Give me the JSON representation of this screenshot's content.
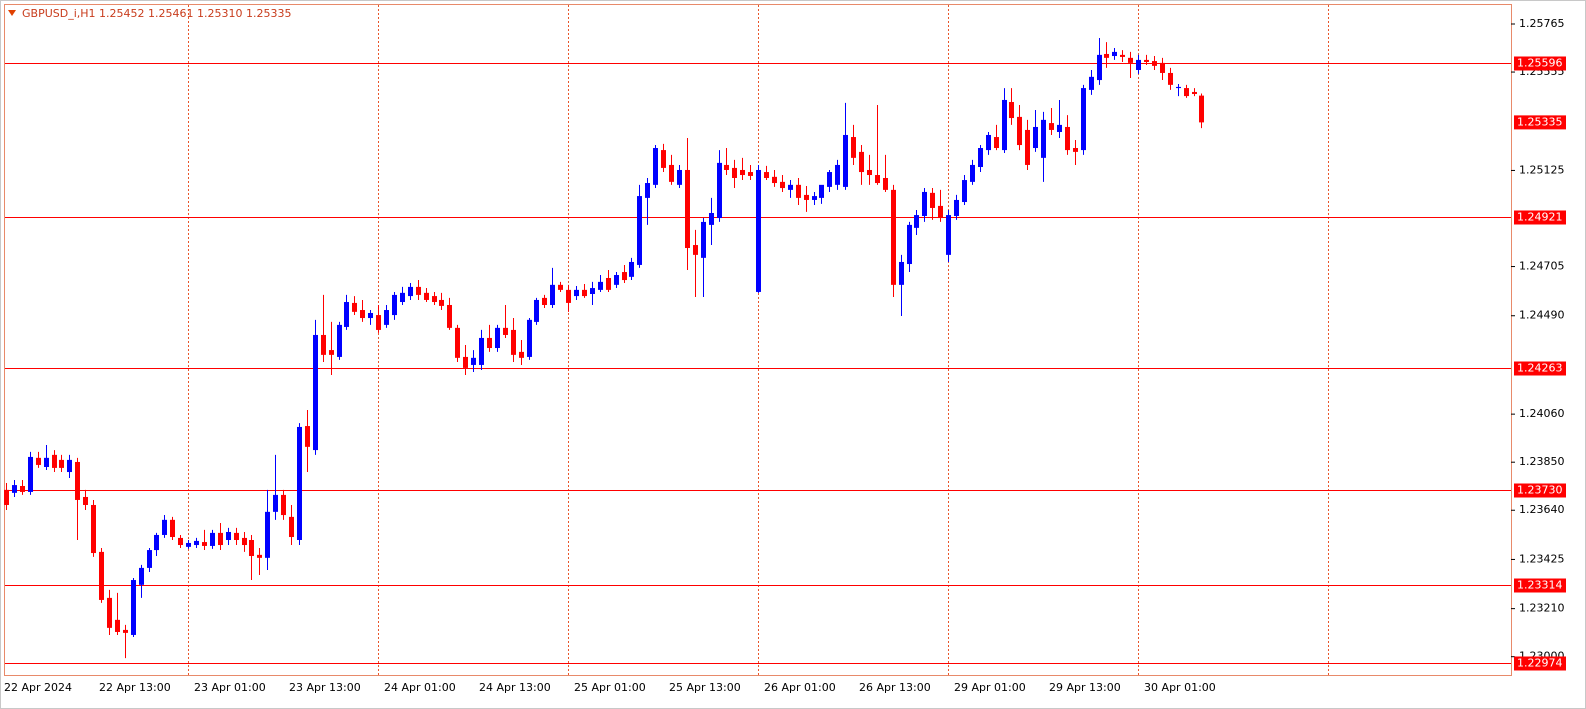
{
  "chart_data": {
    "type": "candlestick",
    "title": "GBPUSD_i,H1  1.25452 1.25461 1.25310 1.25335",
    "up_color": "#0000ff",
    "down_color": "#ff0000",
    "line_color": "#ff0000",
    "ylim": [
      1.2292,
      1.25848
    ],
    "yticks": [
      1.25765,
      1.25555,
      1.25125,
      1.24705,
      {
        "value": 1.2449,
        "label": "1.24490"
      },
      {
        "value": 1.2406,
        "label": "1.24060"
      },
      {
        "value": 1.2385,
        "label": "1.23850"
      },
      {
        "value": 1.2364,
        "label": "1.23640"
      },
      1.23425,
      {
        "value": 1.2321,
        "label": "1.23210"
      },
      {
        "value": 1.23,
        "label": "1.23000"
      }
    ],
    "hlines": [
      1.25596,
      1.24921,
      1.24263,
      {
        "value": 1.2373,
        "label": "1.23730"
      },
      1.23314,
      1.22974
    ],
    "categories": [
      "22 Apr 2024",
      null,
      null,
      null,
      null,
      null,
      null,
      null,
      null,
      null,
      null,
      null,
      "22 Apr 13:00",
      null,
      null,
      null,
      null,
      null,
      null,
      null,
      null,
      null,
      null,
      null,
      "23 Apr 01:00",
      null,
      null,
      null,
      null,
      null,
      null,
      null,
      null,
      null,
      null,
      null,
      "23 Apr 13:00",
      null,
      null,
      null,
      null,
      null,
      null,
      null,
      null,
      null,
      null,
      null,
      "24 Apr 01:00",
      null,
      null,
      null,
      null,
      null,
      null,
      null,
      null,
      null,
      null,
      null,
      "24 Apr 13:00",
      null,
      null,
      null,
      null,
      null,
      null,
      null,
      null,
      null,
      null,
      null,
      "25 Apr 01:00",
      null,
      null,
      null,
      null,
      null,
      null,
      null,
      null,
      null,
      null,
      null,
      "25 Apr 13:00",
      null,
      null,
      null,
      null,
      null,
      null,
      null,
      null,
      null,
      null,
      null,
      "26 Apr 01:00",
      null,
      null,
      null,
      null,
      null,
      null,
      null,
      null,
      null,
      null,
      null,
      "26 Apr 13:00",
      null,
      null,
      null,
      null,
      null,
      null,
      null,
      null,
      null,
      null,
      null,
      "29 Apr 01:00",
      null,
      null,
      null,
      null,
      null,
      null,
      null,
      null,
      null,
      null,
      null,
      "29 Apr 13:00",
      null,
      null,
      null,
      null,
      null,
      null,
      null,
      null,
      null,
      null,
      null,
      "30 Apr 01:00",
      null,
      null,
      null,
      null,
      null,
      null,
      null
    ],
    "open": [
      1.23729,
      1.23716,
      1.23746,
      1.2372,
      1.23869,
      1.23829,
      1.23882,
      1.2386,
      1.23807,
      1.23851,
      1.23698,
      1.23663,
      1.23458,
      1.23257,
      1.23161,
      1.23117,
      1.23095,
      1.23314,
      1.23388,
      1.23466,
      1.23532,
      1.23598,
      1.23519,
      1.2348,
      1.23488,
      1.23501,
      1.23484,
      1.23541,
      1.2351,
      1.23541,
      1.23519,
      1.2351,
      1.23445,
      1.23432,
      1.23633,
      1.23707,
      1.23611,
      1.2351,
      1.24008,
      1.23903,
      1.24406,
      1.2434,
      1.2431,
      1.24441,
      1.24546,
      1.24515,
      1.2448,
      1.24493,
      1.2445,
      1.24493,
      1.2455,
      1.24576,
      1.24616,
      1.2459,
      1.24576,
      1.24559,
      1.24537,
      1.24437,
      1.2431,
      1.24275,
      1.24275,
      1.24393,
      1.24349,
      1.24437,
      1.24428,
      1.24332,
      1.2431,
      1.24463,
      1.24568,
      1.24537,
      1.24625,
      1.24603,
      1.24576,
      1.24603,
      1.24585,
      1.24603,
      1.24655,
      1.24625,
      1.24681,
      1.2466,
      1.24712,
      1.25005,
      1.25062,
      1.25214,
      1.25149,
      1.25062,
      1.25127,
      1.24799,
      1.24743,
      1.24887,
      1.24917,
      1.25149,
      1.25136,
      1.25127,
      1.25118,
      1.24594,
      1.25118,
      1.25097,
      1.25075,
      1.2504,
      1.25062,
      1.25018,
      1.24996,
      1.25005,
      1.25053,
      1.25062,
      1.25053,
      1.25271,
      1.25206,
      1.25127,
      1.25105,
      1.25092,
      1.2504,
      1.24625,
      1.24716,
      1.24874,
      1.24926,
      1.25027,
      1.2497,
      1.24756,
      1.24926,
      1.24987,
      1.25075,
      1.2514,
      1.25214,
      1.25271,
      1.25214,
      1.25424,
      1.25359,
      1.25302,
      1.25223,
      1.2518,
      1.25332,
      1.25293,
      1.25315,
      1.25223,
      1.25214,
      1.25477,
      1.2552,
      1.25634,
      1.25625,
      1.2563,
      1.25617,
      1.25564,
      1.25608,
      1.25603,
      1.25595,
      1.25551,
      1.25485,
      1.25485,
      1.25468,
      1.25452
    ],
    "high": [
      1.23759,
      1.23772,
      1.23772,
      1.23895,
      1.23895,
      1.23925,
      1.23903,
      1.23882,
      1.23882,
      1.23869,
      1.23729,
      1.23685,
      1.23475,
      1.23292,
      1.23279,
      1.23139,
      1.23344,
      1.23401,
      1.23475,
      1.23541,
      1.23619,
      1.23611,
      1.23532,
      1.2351,
      1.23519,
      1.23554,
      1.23554,
      1.23584,
      1.23563,
      1.23563,
      1.23545,
      1.23532,
      1.23475,
      1.23729,
      1.23882,
      1.23729,
      1.23663,
      1.24021,
      1.24078,
      1.24472,
      1.24581,
      1.24463,
      1.24463,
      1.24581,
      1.24576,
      1.24559,
      1.24515,
      1.24537,
      1.24537,
      1.24594,
      1.24616,
      1.24633,
      1.24646,
      1.24611,
      1.24594,
      1.2459,
      1.24568,
      1.2445,
      1.24362,
      1.2434,
      1.24428,
      1.2445,
      1.2445,
      1.24537,
      1.2448,
      1.24384,
      1.2448,
      1.24568,
      1.24581,
      1.24699,
      1.24638,
      1.24625,
      1.2462,
      1.24629,
      1.24638,
      1.24668,
      1.2469,
      1.24681,
      1.24712,
      1.24743,
      1.25062,
      1.25092,
      1.25236,
      1.25241,
      1.25193,
      1.25149,
      1.25267,
      1.24865,
      1.24917,
      1.25005,
      1.25214,
      1.25223,
      1.25171,
      1.2518,
      1.25149,
      1.25149,
      1.25145,
      1.25127,
      1.25105,
      1.25083,
      1.25092,
      1.25057,
      1.25031,
      1.2504,
      1.25127,
      1.25171,
      1.2542,
      1.25324,
      1.25236,
      1.25193,
      1.25411,
      1.25193,
      1.25062,
      1.24756,
      1.249,
      1.24952,
      1.25048,
      1.25048,
      1.2504,
      1.24952,
      1.25018,
      1.25105,
      1.25171,
      1.25236,
      1.25293,
      1.25324,
      1.25485,
      1.25485,
      1.25411,
      1.25346,
      1.25389,
      1.25381,
      1.25398,
      1.25433,
      1.25367,
      1.25258,
      1.25499,
      1.25564,
      1.25704,
      1.25686,
      1.2566,
      1.25651,
      1.25643,
      1.2563,
      1.2563,
      1.25625,
      1.25617,
      1.25573,
      1.25503,
      1.25499,
      1.25485,
      1.25461
    ],
    "low": [
      1.23641,
      1.23698,
      1.23707,
      1.23707,
      1.23825,
      1.23816,
      1.23807,
      1.23807,
      1.23781,
      1.2351,
      1.23641,
      1.23436,
      1.23235,
      1.23095,
      1.23095,
      1.22994,
      1.23086,
      1.23257,
      1.2337,
      1.2344,
      1.23519,
      1.2351,
      1.23475,
      1.23471,
      1.23475,
      1.23466,
      1.23471,
      1.23466,
      1.23488,
      1.23488,
      1.23458,
      1.23335,
      1.23357,
      1.23379,
      1.23598,
      1.23598,
      1.23488,
      1.23488,
      1.23807,
      1.23882,
      1.24288,
      1.24231,
      1.24297,
      1.24428,
      1.24493,
      1.24463,
      1.2445,
      1.24415,
      1.24437,
      1.24472,
      1.24537,
      1.24559,
      1.24559,
      1.2455,
      1.24537,
      1.24515,
      1.24428,
      1.24288,
      1.24231,
      1.24244,
      1.24253,
      1.24332,
      1.24332,
      1.24393,
      1.24288,
      1.24275,
      1.24297,
      1.2445,
      1.24524,
      1.24524,
      1.24594,
      1.24507,
      1.24559,
      1.24568,
      1.24537,
      1.24594,
      1.24594,
      1.24611,
      1.24633,
      1.24646,
      1.24699,
      1.24887,
      1.25048,
      1.25118,
      1.25062,
      1.25048,
      1.2469,
      1.24572,
      1.24572,
      1.24799,
      1.249,
      1.25105,
      1.25048,
      1.25083,
      1.25083,
      1.2459,
      1.25083,
      1.25053,
      1.25031,
      1.25005,
      1.24974,
      1.24944,
      1.24974,
      1.24979,
      1.25031,
      1.2504,
      1.2504,
      1.25149,
      1.25062,
      1.25062,
      1.25062,
      1.25031,
      1.24572,
      1.24489,
      1.24681,
      1.24843,
      1.249,
      1.24909,
      1.249,
      1.24725,
      1.24909,
      1.24974,
      1.25062,
      1.25118,
      1.25193,
      1.25214,
      1.25201,
      1.25324,
      1.25214,
      1.25127,
      1.25206,
      1.25075,
      1.2528,
      1.25267,
      1.25193,
      1.25149,
      1.25193,
      1.25455,
      1.25499,
      1.25573,
      1.25608,
      1.25599,
      1.25529,
      1.25547,
      1.25586,
      1.25564,
      1.2552,
      1.25477,
      1.2545,
      1.25442,
      1.2545,
      1.2531
    ],
    "close": [
      1.23663,
      1.2375,
      1.2372,
      1.23873,
      1.23838,
      1.23869,
      1.23825,
      1.23825,
      1.2386,
      1.23685,
      1.23663,
      1.23453,
      1.23248,
      1.23126,
      1.23108,
      1.23104,
      1.23335,
      1.23388,
      1.23466,
      1.23532,
      1.23598,
      1.23523,
      1.23488,
      1.23497,
      1.23506,
      1.23484,
      1.23541,
      1.23488,
      1.23545,
      1.2351,
      1.23488,
      1.2344,
      1.23432,
      1.23633,
      1.23707,
      1.23619,
      1.23523,
      1.24004,
      1.23917,
      1.24406,
      1.24319,
      1.24319,
      1.2445,
      1.2455,
      1.24507,
      1.2448,
      1.24502,
      1.24428,
      1.24515,
      1.24581,
      1.2459,
      1.24616,
      1.24581,
      1.24559,
      1.2455,
      1.24533,
      1.24437,
      1.24306,
      1.24262,
      1.24306,
      1.24393,
      1.24349,
      1.24437,
      1.24406,
      1.24319,
      1.24306,
      1.24472,
      1.24559,
      1.24537,
      1.24625,
      1.24603,
      1.24546,
      1.24603,
      1.24576,
      1.24611,
      1.24638,
      1.24603,
      1.24668,
      1.24646,
      1.24725,
      1.25013,
      1.2507,
      1.25223,
      1.25136,
      1.25075,
      1.25127,
      1.24786,
      1.24756,
      1.249,
      1.24939,
      1.25158,
      1.25127,
      1.25092,
      1.25105,
      1.25101,
      1.25127,
      1.25092,
      1.2507,
      1.25048,
      1.25062,
      1.25005,
      1.24996,
      1.25013,
      1.25062,
      1.25118,
      1.25149,
      1.2528,
      1.2518,
      1.25118,
      1.25105,
      1.2507,
      1.2504,
      1.24625,
      1.24725,
      1.24887,
      1.2493,
      1.25031,
      1.24961,
      1.24917,
      1.2493,
      1.24996,
      1.25083,
      1.25149,
      1.25223,
      1.2528,
      1.25223,
      1.25433,
      1.25354,
      1.25236,
      1.25149,
      1.25315,
      1.25346,
      1.25302,
      1.25324,
      1.25214,
      1.25206,
      1.25485,
      1.25534,
      1.2563,
      1.25617,
      1.25643,
      1.25621,
      1.25595,
      1.25608,
      1.25599,
      1.25582,
      1.25551,
      1.25499,
      1.2549,
      1.2545,
      1.25459,
      1.25335
    ]
  }
}
